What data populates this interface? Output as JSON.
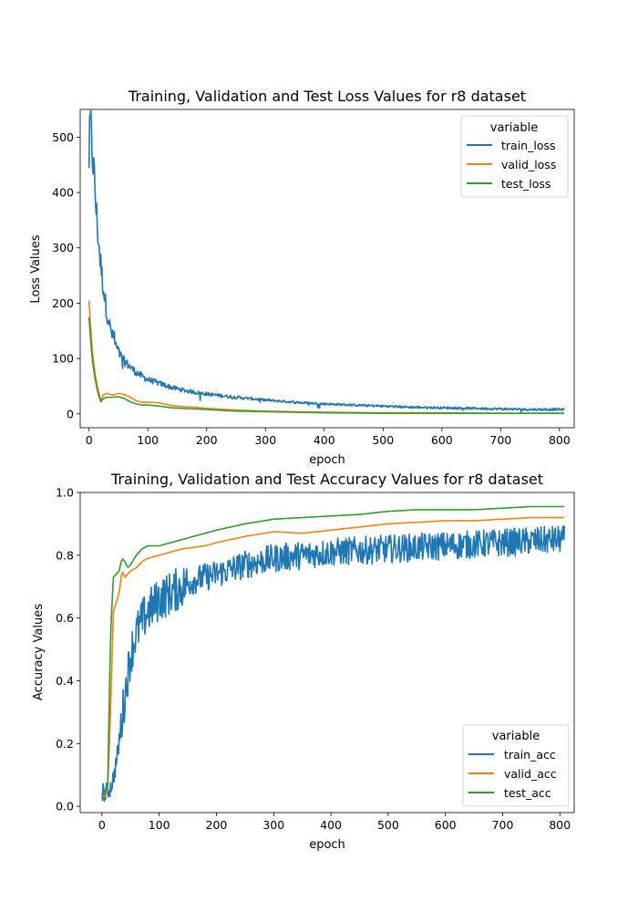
{
  "chart_data": [
    {
      "type": "line",
      "title": "Training, Validation and Test Loss Values for r8 dataset",
      "xlabel": "epoch",
      "ylabel": "Loss Values",
      "xlim": [
        -15,
        825
      ],
      "ylim": [
        -25,
        550
      ],
      "xticks": [
        0,
        100,
        200,
        300,
        400,
        500,
        600,
        700,
        800
      ],
      "yticks": [
        0,
        100,
        200,
        300,
        400,
        500
      ],
      "xtick_labels": [
        "0",
        "100",
        "200",
        "300",
        "400",
        "500",
        "600",
        "700",
        "800"
      ],
      "ytick_labels": [
        "0",
        "100",
        "200",
        "300",
        "400",
        "500"
      ],
      "grid": false,
      "legend": {
        "title": "variable",
        "placement": "top-right"
      },
      "series": [
        {
          "name": "train_loss",
          "color": "#1f77b4",
          "noise": true,
          "x": [
            0,
            2,
            4,
            6,
            8,
            10,
            12,
            15,
            18,
            22,
            26,
            30,
            35,
            40,
            45,
            50,
            55,
            60,
            70,
            80,
            90,
            100,
            120,
            140,
            160,
            180,
            200,
            250,
            300,
            350,
            400,
            450,
            500,
            550,
            600,
            650,
            700,
            750,
            800,
            808
          ],
          "y": [
            460,
            525,
            500,
            470,
            440,
            410,
            370,
            330,
            290,
            250,
            215,
            185,
            160,
            140,
            125,
            112,
            102,
            95,
            85,
            75,
            68,
            62,
            55,
            48,
            43,
            39,
            36,
            30,
            25,
            21,
            18,
            16,
            14,
            12,
            11,
            10,
            9,
            8,
            8,
            8
          ]
        },
        {
          "name": "valid_loss",
          "color": "#ff7f0e",
          "noise": false,
          "x": [
            0,
            3,
            6,
            10,
            15,
            20,
            25,
            30,
            40,
            50,
            60,
            70,
            80,
            90,
            100,
            120,
            140,
            160,
            180,
            200,
            250,
            300,
            400,
            500,
            600,
            700,
            808
          ],
          "y": [
            205,
            150,
            110,
            75,
            45,
            25,
            35,
            37,
            34,
            37,
            35,
            30,
            24,
            21,
            21,
            20,
            15,
            13,
            12,
            10,
            7,
            5,
            3,
            2,
            2,
            1,
            1
          ]
        },
        {
          "name": "test_loss",
          "color": "#2ca02c",
          "noise": false,
          "x": [
            0,
            3,
            6,
            10,
            15,
            20,
            25,
            30,
            40,
            50,
            60,
            70,
            80,
            90,
            100,
            120,
            140,
            160,
            180,
            200,
            250,
            300,
            400,
            500,
            600,
            700,
            808
          ],
          "y": [
            175,
            130,
            95,
            65,
            38,
            22,
            28,
            30,
            30,
            31,
            28,
            22,
            18,
            16,
            16,
            14,
            11,
            10,
            9,
            8,
            5,
            4,
            2,
            1,
            1,
            1,
            1
          ]
        }
      ]
    },
    {
      "type": "line",
      "title": "Training, Validation and Test Accuracy Values for r8 dataset",
      "xlabel": "epoch",
      "ylabel": "Accuracy Values",
      "xlim": [
        -38,
        825
      ],
      "ylim": [
        -0.02,
        1.0
      ],
      "xticks": [
        0,
        100,
        200,
        300,
        400,
        500,
        600,
        700,
        800
      ],
      "yticks": [
        0.0,
        0.2,
        0.4,
        0.6,
        0.8,
        1.0
      ],
      "xtick_labels": [
        "0",
        "100",
        "200",
        "300",
        "400",
        "500",
        "600",
        "700",
        "800"
      ],
      "ytick_labels": [
        "0.0",
        "0.2",
        "0.4",
        "0.6",
        "0.8",
        "1.0"
      ],
      "grid": false,
      "legend": {
        "title": "variable",
        "placement": "bottom-right"
      },
      "series": [
        {
          "name": "train_acc",
          "color": "#1f77b4",
          "noise": true,
          "x": [
            0,
            5,
            10,
            15,
            20,
            25,
            30,
            35,
            40,
            45,
            50,
            55,
            60,
            70,
            80,
            90,
            100,
            120,
            140,
            160,
            180,
            200,
            250,
            300,
            350,
            400,
            450,
            500,
            550,
            600,
            650,
            700,
            750,
            800,
            808
          ],
          "y": [
            0.05,
            0.04,
            0.05,
            0.06,
            0.09,
            0.14,
            0.2,
            0.28,
            0.35,
            0.42,
            0.48,
            0.52,
            0.55,
            0.59,
            0.62,
            0.64,
            0.66,
            0.68,
            0.7,
            0.72,
            0.73,
            0.74,
            0.77,
            0.79,
            0.8,
            0.81,
            0.815,
            0.82,
            0.825,
            0.83,
            0.835,
            0.84,
            0.845,
            0.85,
            0.85
          ]
        },
        {
          "name": "valid_acc",
          "color": "#ff7f0e",
          "noise": false,
          "x": [
            0,
            5,
            10,
            15,
            20,
            25,
            30,
            35,
            40,
            45,
            50,
            60,
            70,
            80,
            100,
            120,
            140,
            160,
            180,
            200,
            250,
            300,
            350,
            400,
            450,
            500,
            550,
            600,
            650,
            700,
            750,
            800,
            808
          ],
          "y": [
            0.035,
            0.03,
            0.05,
            0.3,
            0.62,
            0.65,
            0.68,
            0.75,
            0.73,
            0.74,
            0.75,
            0.76,
            0.78,
            0.79,
            0.8,
            0.81,
            0.82,
            0.825,
            0.83,
            0.84,
            0.86,
            0.875,
            0.87,
            0.88,
            0.89,
            0.9,
            0.905,
            0.91,
            0.91,
            0.915,
            0.92,
            0.92,
            0.92
          ]
        },
        {
          "name": "test_acc",
          "color": "#2ca02c",
          "noise": false,
          "x": [
            0,
            5,
            10,
            15,
            20,
            25,
            30,
            35,
            40,
            45,
            50,
            60,
            70,
            80,
            100,
            120,
            140,
            160,
            180,
            200,
            250,
            300,
            350,
            400,
            450,
            500,
            550,
            600,
            650,
            700,
            750,
            800,
            808
          ],
          "y": [
            0.05,
            0.04,
            0.06,
            0.55,
            0.73,
            0.74,
            0.75,
            0.79,
            0.78,
            0.76,
            0.77,
            0.8,
            0.82,
            0.83,
            0.83,
            0.84,
            0.85,
            0.86,
            0.87,
            0.88,
            0.9,
            0.915,
            0.92,
            0.925,
            0.93,
            0.94,
            0.945,
            0.945,
            0.945,
            0.95,
            0.955,
            0.955,
            0.955
          ]
        }
      ]
    }
  ]
}
